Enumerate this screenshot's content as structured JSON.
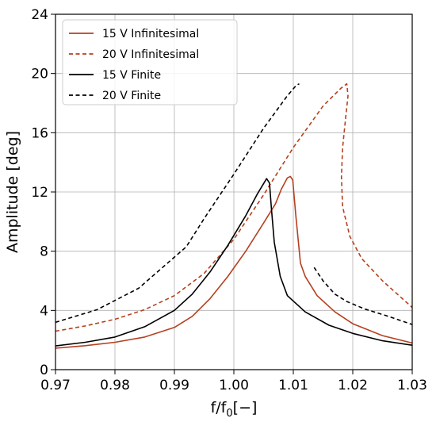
{
  "chart_data": {
    "type": "line",
    "xlabel_main": "f/f",
    "xlabel_sub": "0",
    "xlabel_suffix": "[−]",
    "ylabel": "Amplitude [deg]",
    "xlim": [
      0.97,
      1.03
    ],
    "ylim": [
      0,
      24
    ],
    "xticks": [
      0.97,
      0.98,
      0.99,
      1.0,
      1.01,
      1.02,
      1.03
    ],
    "xtick_labels": [
      "0.97",
      "0.98",
      "0.99",
      "1.00",
      "1.01",
      "1.02",
      "1.03"
    ],
    "yticks": [
      0,
      4,
      8,
      12,
      16,
      20,
      24
    ],
    "ytick_labels": [
      "0",
      "4",
      "8",
      "12",
      "16",
      "20",
      "24"
    ],
    "grid": true,
    "legend_position": "top-left",
    "series": [
      {
        "name": "15 V Infinitesimal",
        "color": "#b5401f",
        "dash": "solid",
        "segments": [
          [
            [
              0.97,
              1.45
            ],
            [
              0.975,
              1.62
            ],
            [
              0.98,
              1.85
            ],
            [
              0.985,
              2.2
            ],
            [
              0.99,
              2.85
            ],
            [
              0.993,
              3.6
            ],
            [
              0.996,
              4.8
            ],
            [
              0.999,
              6.3
            ],
            [
              1.002,
              8.0
            ],
            [
              1.005,
              9.9
            ],
            [
              1.007,
              11.2
            ],
            [
              1.008,
              12.2
            ],
            [
              1.009,
              12.95
            ],
            [
              1.0095,
              13.05
            ],
            [
              1.0099,
              12.8
            ],
            [
              1.0104,
              10.5
            ],
            [
              1.0112,
              7.2
            ],
            [
              1.012,
              6.3
            ],
            [
              1.014,
              5.0
            ],
            [
              1.017,
              3.9
            ],
            [
              1.02,
              3.1
            ],
            [
              1.025,
              2.3
            ],
            [
              1.03,
              1.8
            ]
          ]
        ]
      },
      {
        "name": "20 V Infinitesimal",
        "color": "#b5401f",
        "dash": "dashed",
        "segments": [
          [
            [
              0.97,
              2.6
            ],
            [
              0.975,
              2.95
            ],
            [
              0.98,
              3.4
            ],
            [
              0.985,
              4.05
            ],
            [
              0.99,
              5.0
            ],
            [
              0.995,
              6.5
            ],
            [
              1.0,
              8.8
            ],
            [
              1.005,
              11.8
            ],
            [
              1.01,
              15.0
            ],
            [
              1.015,
              17.8
            ],
            [
              1.018,
              19.0
            ],
            [
              1.019,
              19.3
            ],
            [
              1.0192,
              18.5
            ],
            [
              1.0188,
              17.0
            ],
            [
              1.0183,
              15.0
            ],
            [
              1.0181,
              13.0
            ],
            [
              1.0183,
              11.0
            ],
            [
              1.0195,
              9.0
            ],
            [
              1.0215,
              7.5
            ],
            [
              1.025,
              6.0
            ],
            [
              1.03,
              4.2
            ]
          ]
        ]
      },
      {
        "name": "15 V Finite",
        "color": "#000000",
        "dash": "solid",
        "segments": [
          [
            [
              0.97,
              1.6
            ],
            [
              0.975,
              1.85
            ],
            [
              0.98,
              2.2
            ],
            [
              0.985,
              2.9
            ],
            [
              0.99,
              4.0
            ],
            [
              0.993,
              5.1
            ],
            [
              0.996,
              6.6
            ],
            [
              0.999,
              8.4
            ],
            [
              1.002,
              10.4
            ],
            [
              1.004,
              11.9
            ],
            [
              1.0055,
              12.9
            ],
            [
              1.006,
              12.6
            ],
            [
              1.0063,
              11.0
            ],
            [
              1.0068,
              8.6
            ],
            [
              1.0078,
              6.3
            ],
            [
              1.009,
              5.0
            ],
            [
              1.012,
              3.9
            ],
            [
              1.016,
              3.0
            ],
            [
              1.02,
              2.45
            ],
            [
              1.025,
              1.95
            ],
            [
              1.03,
              1.65
            ]
          ]
        ]
      },
      {
        "name": "20 V Finite",
        "color": "#000000",
        "dash": "dashed",
        "segments": [
          [
            [
              0.97,
              3.2
            ],
            [
              0.977,
              4.05
            ],
            [
              0.984,
              5.5
            ],
            [
              0.988,
              6.9
            ],
            [
              0.992,
              8.3
            ],
            [
              0.995,
              10.2
            ],
            [
              1.0,
              13.2
            ],
            [
              1.005,
              16.3
            ],
            [
              1.009,
              18.5
            ],
            [
              1.0105,
              19.2
            ],
            [
              1.011,
              19.3
            ]
          ],
          [
            [
              1.0135,
              6.9
            ],
            [
              1.015,
              6.0
            ],
            [
              1.017,
              5.1
            ],
            [
              1.019,
              4.6
            ],
            [
              1.022,
              4.1
            ],
            [
              1.026,
              3.6
            ],
            [
              1.03,
              3.05
            ]
          ]
        ]
      }
    ]
  }
}
